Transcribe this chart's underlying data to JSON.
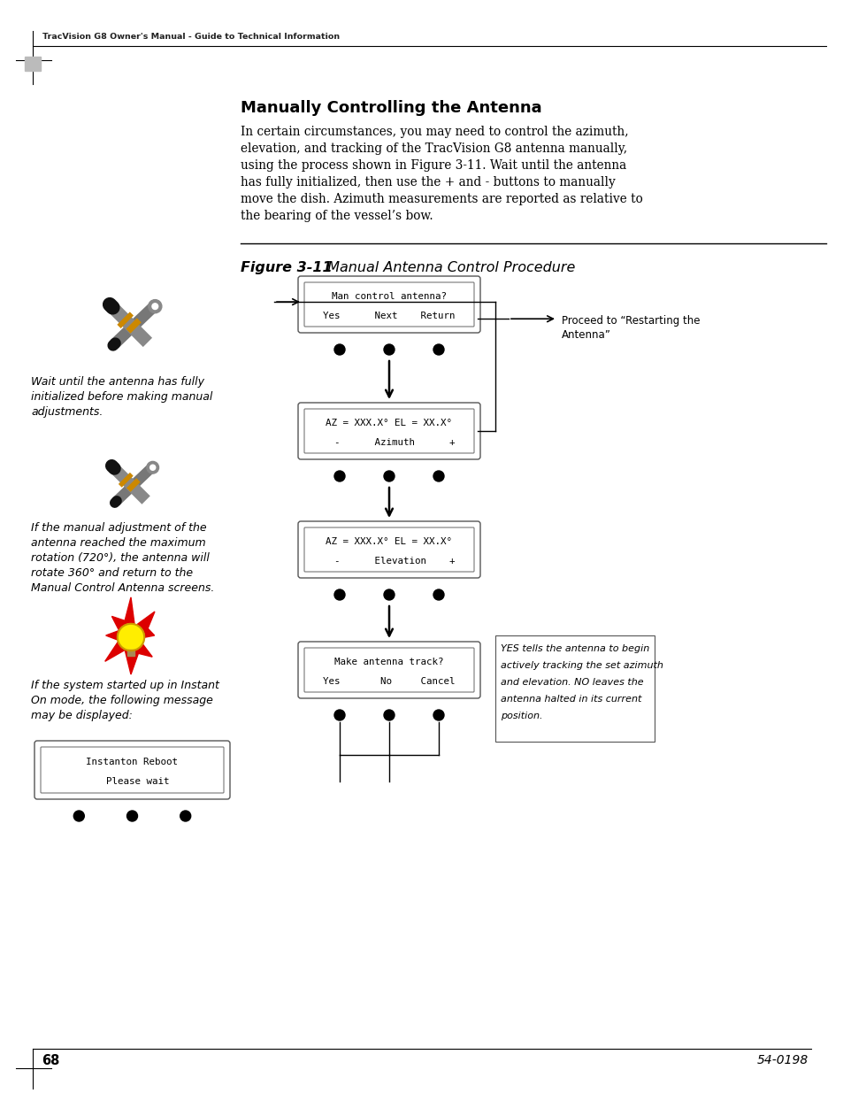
{
  "page_title": "TracVision G8 Owner's Manual - Guide to Technical Information",
  "page_num": "68",
  "page_code": "54-0198",
  "section_title": "Manually Controlling the Antenna",
  "body_lines": [
    "In certain circumstances, you may need to control the azimuth,",
    "elevation, and tracking of the TracVision G8 antenna manually,",
    "using the process shown in Figure 3-11. Wait until the antenna",
    "has fully initialized, then use the + and - buttons to manually",
    "move the dish. Azimuth measurements are reported as relative to",
    "the bearing of the vessel’s bow."
  ],
  "figure_label": "Figure 3-11",
  "figure_title": "Manual Antenna Control Procedure",
  "box1_line1": "Man control antenna?",
  "box1_line2": "Yes      Next    Return",
  "box2_line1": "AZ = XXX.X° EL = XX.X°",
  "box2_line2": "  -      Azimuth      +",
  "box3_line1": "AZ = XXX.X° EL = XX.X°",
  "box3_line2": "  -      Elevation    +",
  "box4_line1": "Make antenna track?",
  "box4_line2": "Yes       No     Cancel",
  "box5_line1": "Instanton Reboot",
  "box5_line2": "  Please wait",
  "note1_lines": [
    "Wait until the antenna has fully",
    "initialized before making manual",
    "adjustments."
  ],
  "note2_lines": [
    "If the manual adjustment of the",
    "antenna reached the maximum",
    "rotation (720°), the antenna will",
    "rotate 360° and return to the",
    "Manual Control Antenna screens."
  ],
  "note3_lines": [
    "If the system started up in Instant",
    "On mode, the following message",
    "may be displayed:"
  ],
  "note4_lines": [
    "YES tells the antenna to begin",
    "actively tracking the set azimuth",
    "and elevation. NO leaves the",
    "antenna halted in its current",
    "position."
  ],
  "proceed_text_lines": [
    "Proceed to “Restarting the",
    "Antenna”"
  ],
  "bg_color": "#ffffff"
}
